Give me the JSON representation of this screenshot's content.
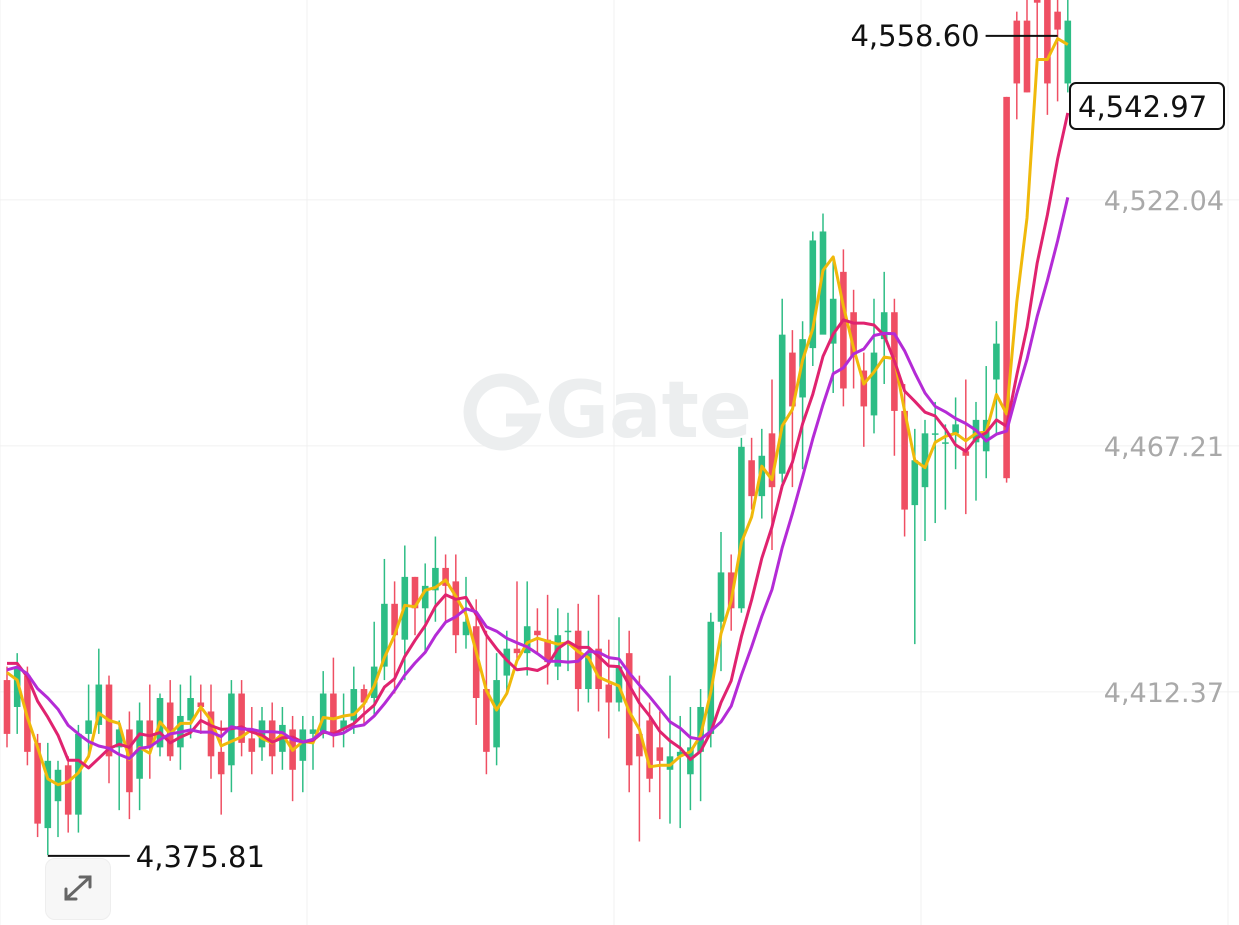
{
  "watermark": {
    "text": "Gate"
  },
  "colors": {
    "up": "#2dbd85",
    "down": "#ef4f63",
    "ma_short": "#f0b90b",
    "ma_mid": "#e0236f",
    "ma_long": "#b42bd6",
    "grid": "#f0f0f0",
    "axis_text": "#a9a9a9"
  },
  "expand_button": {
    "icon": "expand-arrows-icon"
  },
  "chart_data": {
    "type": "candlestick",
    "y_axis": {
      "ticks": [
        "4,522.04",
        "4,467.21",
        "4,412.37"
      ],
      "tick_values": [
        4522.04,
        4467.21,
        4412.37
      ]
    },
    "ylim": [
      4360.4,
      4566.6
    ],
    "grid": true,
    "annotations": {
      "high": {
        "label": "4,558.60",
        "value": 4558.6
      },
      "low": {
        "label": "4,375.81",
        "value": 4375.81
      },
      "last": {
        "label": "4,542.97",
        "value": 4542.97
      }
    },
    "candles": [
      [
        4415,
        4403,
        4418,
        4400
      ],
      [
        4409,
        4418,
        4421,
        4403
      ],
      [
        4416,
        4399,
        4418,
        4396
      ],
      [
        4401,
        4383,
        4403,
        4380
      ],
      [
        4382,
        4397,
        4401,
        4376
      ],
      [
        4388,
        4395,
        4397,
        4380
      ],
      [
        4396,
        4385,
        4398,
        4381
      ],
      [
        4385,
        4403,
        4405,
        4381
      ],
      [
        4403,
        4406,
        4414,
        4398
      ],
      [
        4405,
        4414,
        4422,
        4403
      ],
      [
        4414,
        4398,
        4416,
        4392
      ],
      [
        4400,
        4404,
        4406,
        4386
      ],
      [
        4404,
        4390,
        4408,
        4384
      ],
      [
        4393,
        4406,
        4410,
        4386
      ],
      [
        4406,
        4400,
        4414,
        4393
      ],
      [
        4400,
        4411,
        4412,
        4398
      ],
      [
        4410,
        4398,
        4415,
        4397
      ],
      [
        4400,
        4407,
        4414,
        4395
      ],
      [
        4406,
        4411,
        4416,
        4402
      ],
      [
        4410,
        4409,
        4414,
        4403
      ],
      [
        4408,
        4398,
        4414,
        4393
      ],
      [
        4399,
        4394,
        4406,
        4385
      ],
      [
        4396,
        4412,
        4415,
        4390
      ],
      [
        4412,
        4401,
        4415,
        4398
      ],
      [
        4402,
        4399,
        4409,
        4394
      ],
      [
        4400,
        4406,
        4409,
        4397
      ],
      [
        4406,
        4398,
        4410,
        4394
      ],
      [
        4399,
        4405,
        4409,
        4395
      ],
      [
        4404,
        4395,
        4407,
        4388
      ],
      [
        4397,
        4404,
        4407,
        4390
      ],
      [
        4403,
        4404,
        4407,
        4395
      ],
      [
        4403,
        4412,
        4417,
        4402
      ],
      [
        4412,
        4403,
        4420,
        4400
      ],
      [
        4404,
        4406,
        4412,
        4400
      ],
      [
        4406,
        4413,
        4418,
        4403
      ],
      [
        4413,
        4410,
        4414,
        4405
      ],
      [
        4411,
        4418,
        4428,
        4407
      ],
      [
        4418,
        4432,
        4442,
        4415
      ],
      [
        4432,
        4425,
        4437,
        4412
      ],
      [
        4424,
        4438,
        4445,
        4415
      ],
      [
        4438,
        4431,
        4438,
        4425
      ],
      [
        4431,
        4436,
        4441,
        4421
      ],
      [
        4435,
        4440,
        4447,
        4428
      ],
      [
        4440,
        4436,
        4443,
        4428
      ],
      [
        4437,
        4425,
        4443,
        4421
      ],
      [
        4425,
        4428,
        4438,
        4422
      ],
      [
        4427,
        4411,
        4433,
        4405
      ],
      [
        4413,
        4399,
        4426,
        4394
      ],
      [
        4400,
        4415,
        4421,
        4396
      ],
      [
        4416,
        4422,
        4426,
        4412
      ],
      [
        4422,
        4421,
        4437,
        4419
      ],
      [
        4421,
        4427,
        4437,
        4416
      ],
      [
        4426,
        4425,
        4431,
        4421
      ],
      [
        4424,
        4419,
        4434,
        4414
      ],
      [
        4418,
        4425,
        4431,
        4415
      ],
      [
        4426,
        4426,
        4430,
        4417
      ],
      [
        4426,
        4413,
        4432,
        4408
      ],
      [
        4413,
        4421,
        4426,
        4410
      ],
      [
        4422,
        4413,
        4434,
        4408
      ],
      [
        4414,
        4410,
        4424,
        4402
      ],
      [
        4410,
        4418,
        4429,
        4408
      ],
      [
        4421,
        4396,
        4426,
        4390
      ],
      [
        4403,
        4398,
        4416,
        4379
      ],
      [
        4406,
        4393,
        4410,
        4390
      ],
      [
        4400,
        4397,
        4408,
        4384
      ],
      [
        4395,
        4398,
        4416,
        4383
      ],
      [
        4398,
        4399,
        4407,
        4382
      ],
      [
        4394,
        4400,
        4409,
        4386
      ],
      [
        4399,
        4409,
        4413,
        4388
      ],
      [
        4403,
        4428,
        4430,
        4400
      ],
      [
        4428,
        4439,
        4448,
        4417
      ],
      [
        4439,
        4431,
        4443,
        4426
      ],
      [
        4431,
        4467,
        4469,
        4430
      ],
      [
        4464,
        4456,
        4469,
        4453
      ],
      [
        4456,
        4465,
        4471,
        4451
      ],
      [
        4470,
        4458,
        4482,
        4444
      ],
      [
        4461,
        4492,
        4500,
        4459
      ],
      [
        4488,
        4476,
        4493,
        4458
      ],
      [
        4478,
        4491,
        4495,
        4462
      ],
      [
        4489,
        4513,
        4515,
        4485
      ],
      [
        4492,
        4515,
        4519,
        4497
      ],
      [
        4490,
        4500,
        4509,
        4479
      ],
      [
        4506,
        4480,
        4511,
        4476
      ],
      [
        4497,
        4487,
        4502,
        4480
      ],
      [
        4484,
        4476,
        4488,
        4467
      ],
      [
        4474,
        4488,
        4500,
        4470
      ],
      [
        4491,
        4497,
        4506,
        4481
      ],
      [
        4497,
        4475,
        4500,
        4465
      ],
      [
        4475,
        4453,
        4481,
        4447
      ],
      [
        4454,
        4464,
        4471,
        4423
      ],
      [
        4458,
        4470,
        4473,
        4446
      ],
      [
        4470,
        4470,
        4477,
        4450
      ],
      [
        4468,
        4468,
        4472,
        4453
      ],
      [
        4470,
        4472,
        4478,
        4462
      ],
      [
        4466,
        4465,
        4482,
        4452
      ],
      [
        4468,
        4473,
        4477,
        4455
      ],
      [
        4466,
        4473,
        4485,
        4460
      ],
      [
        4482,
        4490,
        4495,
        4470
      ],
      [
        4545,
        4460,
        4545,
        4459
      ],
      [
        4562,
        4548,
        4564,
        4540
      ],
      [
        4562,
        4546,
        4569,
        4546
      ],
      [
        4567,
        4566,
        4571,
        4552
      ],
      [
        4570,
        4548,
        4573,
        4541
      ],
      [
        4564,
        4560,
        4576,
        4544
      ],
      [
        4548,
        4562,
        4570,
        4546
      ]
    ]
  }
}
